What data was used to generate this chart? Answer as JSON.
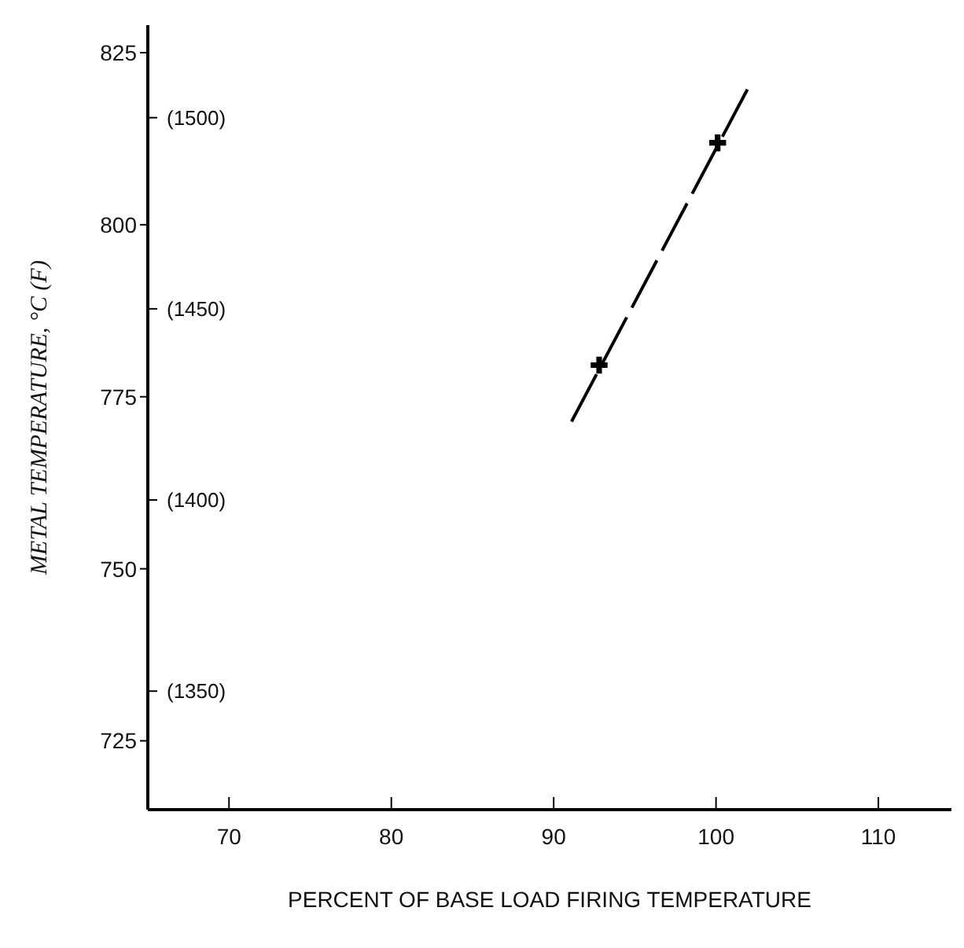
{
  "chart_data": {
    "type": "line",
    "xlabel": "PERCENT OF BASE LOAD FIRING TEMPERATURE",
    "ylabel": "METAL TEMPERATURE, °C (F)",
    "xlim": [
      65,
      114.5
    ],
    "xticks": [
      70,
      80,
      90,
      100,
      110
    ],
    "ylim": [
      715,
      829
    ],
    "yticks": [
      725,
      750,
      775,
      800,
      825
    ],
    "y2lim": [
      1319,
      1524.2
    ],
    "y2ticks": [
      {
        "value": 1350,
        "label": "(1350)"
      },
      {
        "value": 1400,
        "label": "(1400)"
      },
      {
        "value": 1450,
        "label": "(1450)"
      },
      {
        "value": 1500,
        "label": "(1500)"
      }
    ],
    "grid": false,
    "legend": false,
    "series": [
      {
        "color": "#000000",
        "line_style": "dashed",
        "marker": "none",
        "x": [
          91.1,
          102.1
        ],
        "values": [
          771.4,
          820.4
        ]
      },
      {
        "type": "scatter",
        "color": "#000000",
        "marker": "cross",
        "x": [
          92.8,
          100.1
        ],
        "values": [
          779.6,
          811.9
        ]
      }
    ]
  }
}
